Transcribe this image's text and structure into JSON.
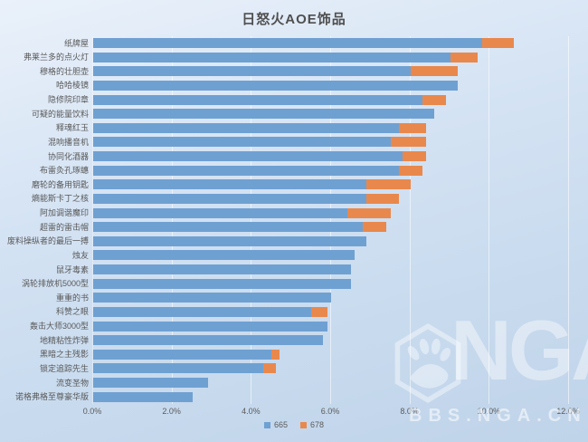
{
  "title": "日怒火AOE饰品",
  "chart_data": {
    "type": "bar",
    "orientation": "horizontal",
    "stacked": true,
    "title": "日怒火AOE饰品",
    "xlabel": "",
    "ylabel": "",
    "xlim": [
      0,
      12
    ],
    "xtick_labels": [
      "0.0%",
      "2.0%",
      "4.0%",
      "6.0%",
      "8.0%",
      "10.0%",
      "12.0%"
    ],
    "grid": "vertical",
    "legend_position": "bottom",
    "categories": [
      "纸牌屋",
      "弗莱兰多的点火灯",
      "穆格的壮胆壶",
      "哈哈棱镜",
      "隐修院印章",
      "可疑的能量饮料",
      "释魂红玉",
      "混响播音机",
      "协同化酒器",
      "布雷灸孔琢蟪",
      "磨轮的备用钥匙",
      "熵能斯卡丁之核",
      "阿加调谐魔印",
      "超雷的雷击帽",
      "废料操纵者的最后一搏",
      "烛友",
      "鼠牙毒素",
      "涡轮排放机5000型",
      "重重的书",
      "科赞之眼",
      "轰击大师3000型",
      "地精粘性炸弹",
      "黑暗之主残影",
      "锁定追踪先生",
      "流变圣物",
      "诺格弗格至尊豪华版"
    ],
    "series": [
      {
        "name": "665",
        "color": "#6FA0D2",
        "values": [
          9.8,
          9.0,
          8.0,
          9.2,
          8.3,
          8.6,
          7.7,
          7.5,
          7.8,
          7.7,
          6.9,
          6.9,
          6.4,
          6.8,
          6.9,
          6.6,
          6.5,
          6.5,
          6.0,
          5.5,
          5.9,
          5.8,
          4.5,
          4.3,
          2.9,
          2.5
        ]
      },
      {
        "name": "678",
        "color": "#E9884C",
        "values": [
          0.8,
          0.7,
          1.2,
          0,
          0.6,
          0,
          0.7,
          0.9,
          0.6,
          0.6,
          1.1,
          0.8,
          1.1,
          0.6,
          0,
          0,
          0,
          0,
          0,
          0.4,
          0,
          0,
          0.2,
          0.3,
          0,
          0
        ]
      }
    ]
  },
  "legend": {
    "items": [
      {
        "label": "665",
        "color": "#6FA0D2"
      },
      {
        "label": "678",
        "color": "#E9884C"
      }
    ]
  },
  "watermark": {
    "logo_text": "NGA",
    "site_text": "BBS.NGA.CN"
  }
}
